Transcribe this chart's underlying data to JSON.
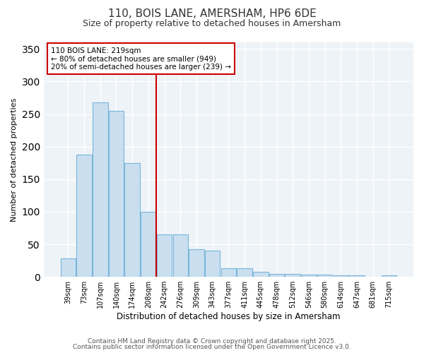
{
  "title1": "110, BOIS LANE, AMERSHAM, HP6 6DE",
  "title2": "Size of property relative to detached houses in Amersham",
  "xlabel": "Distribution of detached houses by size in Amersham",
  "ylabel": "Number of detached properties",
  "bar_labels": [
    "39sqm",
    "73sqm",
    "107sqm",
    "140sqm",
    "174sqm",
    "208sqm",
    "242sqm",
    "276sqm",
    "309sqm",
    "343sqm",
    "377sqm",
    "411sqm",
    "445sqm",
    "478sqm",
    "512sqm",
    "546sqm",
    "580sqm",
    "614sqm",
    "647sqm",
    "681sqm",
    "715sqm"
  ],
  "bar_values": [
    28,
    188,
    268,
    255,
    175,
    100,
    65,
    65,
    42,
    40,
    13,
    13,
    8,
    5,
    5,
    4,
    4,
    2,
    2,
    0,
    2
  ],
  "bar_color": "#c9dff0",
  "bar_edgecolor": "#7ab5d8",
  "vline_x_idx": 5.5,
  "vline_color": "#cc0000",
  "annotation_title": "110 BOIS LANE: 219sqm",
  "annotation_line2": "← 80% of detached houses are smaller (949)",
  "annotation_line3": "20% of semi-detached houses are larger (239) →",
  "annotation_box_facecolor": "#ffffff",
  "annotation_box_edgecolor": "#cc0000",
  "ylim": [
    0,
    360
  ],
  "yticks": [
    0,
    50,
    100,
    150,
    200,
    250,
    300,
    350
  ],
  "fig_bg": "#ffffff",
  "axes_bg": "#eef3f8",
  "grid_color": "#ffffff",
  "footer1": "Contains HM Land Registry data © Crown copyright and database right 2025.",
  "footer2": "Contains public sector information licensed under the Open Government Licence v3.0."
}
